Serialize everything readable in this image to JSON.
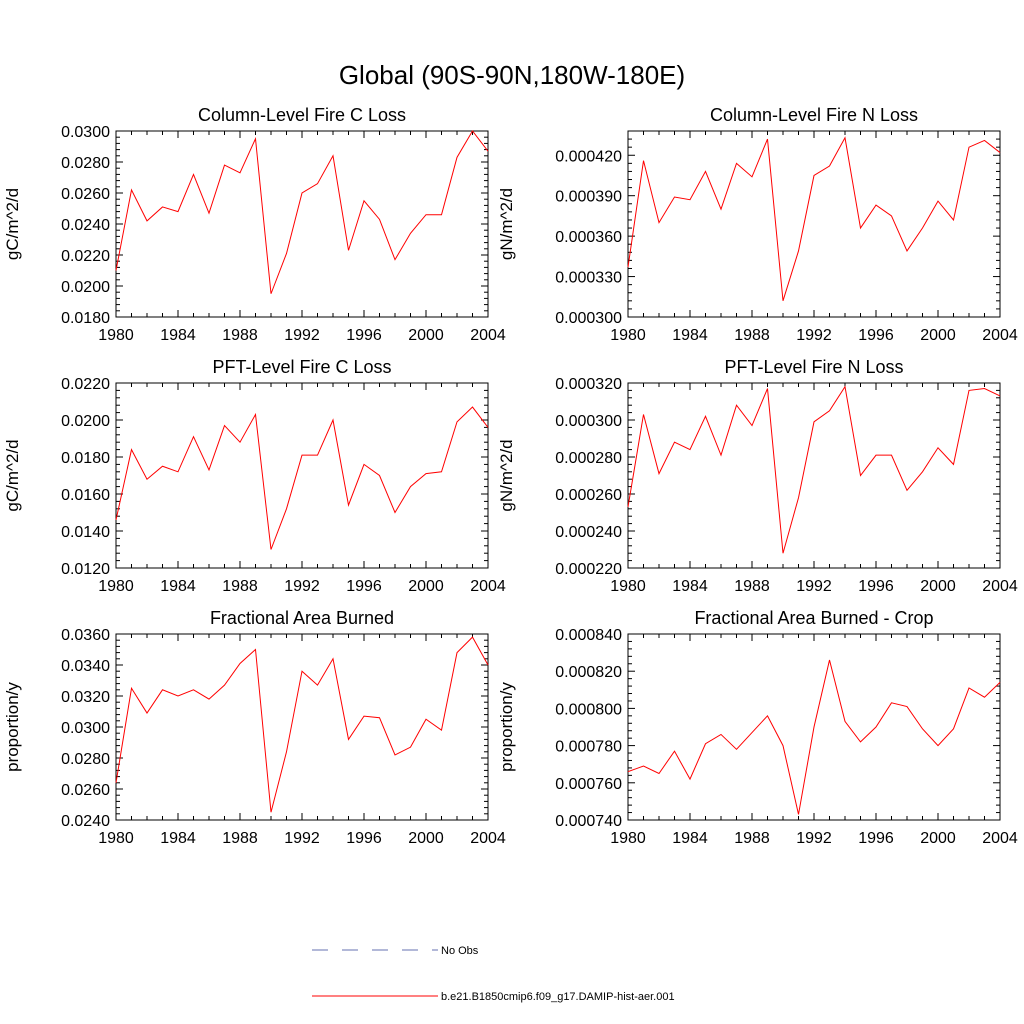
{
  "figure": {
    "title": "Global (90S-90N,180W-180E)"
  },
  "legend": {
    "items": [
      {
        "label": "No Obs",
        "style": "dashed",
        "color": "#6670b0"
      },
      {
        "label": "b.e21.B1850cmip6.f09_g17.DAMIP-hist-aer.001",
        "style": "solid",
        "color": "#ff0000"
      }
    ]
  },
  "chart_data": [
    {
      "type": "line",
      "title": "Column-Level Fire C Loss",
      "xlabel": "",
      "ylabel": "gC/m^2/d",
      "xlim": [
        1980,
        2004
      ],
      "ylim": [
        0.018,
        0.03
      ],
      "xticks": [
        "1980",
        "1984",
        "1988",
        "1992",
        "1996",
        "2000",
        "2004"
      ],
      "yticks": [
        "0.0180",
        "0.0200",
        "0.0220",
        "0.0240",
        "0.0260",
        "0.0280",
        "0.0300"
      ],
      "x": [
        1980,
        1981,
        1982,
        1983,
        1984,
        1985,
        1986,
        1987,
        1988,
        1989,
        1990,
        1991,
        1992,
        1993,
        1994,
        1995,
        1996,
        1997,
        1998,
        1999,
        2000,
        2001,
        2002,
        2003,
        2004
      ],
      "series": [
        {
          "values": [
            0.021,
            0.0262,
            0.0242,
            0.0251,
            0.0248,
            0.0272,
            0.0247,
            0.0278,
            0.0273,
            0.0295,
            0.0195,
            0.0221,
            0.026,
            0.0266,
            0.0284,
            0.0223,
            0.0255,
            0.0243,
            0.0217,
            0.0234,
            0.0246,
            0.0246,
            0.0283,
            0.03,
            0.0287
          ],
          "color": "#ff0000"
        }
      ]
    },
    {
      "type": "line",
      "title": "Column-Level Fire N Loss",
      "xlabel": "",
      "ylabel": "gN/m^2/d",
      "xlim": [
        1980,
        2004
      ],
      "ylim": [
        0.0003,
        0.000438
      ],
      "xticks": [
        "1980",
        "1984",
        "1988",
        "1992",
        "1996",
        "2000",
        "2004"
      ],
      "yticks": [
        "0.000300",
        "0.000330",
        "0.000360",
        "0.000390",
        "0.000420"
      ],
      "x": [
        1980,
        1981,
        1982,
        1983,
        1984,
        1985,
        1986,
        1987,
        1988,
        1989,
        1990,
        1991,
        1992,
        1993,
        1994,
        1995,
        1996,
        1997,
        1998,
        1999,
        2000,
        2001,
        2002,
        2003,
        2004
      ],
      "series": [
        {
          "values": [
            0.000337,
            0.000416,
            0.00037,
            0.000389,
            0.000387,
            0.000408,
            0.00038,
            0.000414,
            0.000404,
            0.000432,
            0.000312,
            0.000349,
            0.000405,
            0.000412,
            0.000433,
            0.000366,
            0.000383,
            0.000375,
            0.000349,
            0.000366,
            0.000386,
            0.000372,
            0.000426,
            0.000431,
            0.000422
          ],
          "color": "#ff0000"
        }
      ]
    },
    {
      "type": "line",
      "title": "PFT-Level Fire C Loss",
      "xlabel": "",
      "ylabel": "gC/m^2/d",
      "xlim": [
        1980,
        2004
      ],
      "ylim": [
        0.012,
        0.022
      ],
      "xticks": [
        "1980",
        "1984",
        "1988",
        "1992",
        "1996",
        "2000",
        "2004"
      ],
      "yticks": [
        "0.0120",
        "0.0140",
        "0.0160",
        "0.0180",
        "0.0200",
        "0.0220"
      ],
      "x": [
        1980,
        1981,
        1982,
        1983,
        1984,
        1985,
        1986,
        1987,
        1988,
        1989,
        1990,
        1991,
        1992,
        1993,
        1994,
        1995,
        1996,
        1997,
        1998,
        1999,
        2000,
        2001,
        2002,
        2003,
        2004
      ],
      "series": [
        {
          "values": [
            0.0146,
            0.0184,
            0.0168,
            0.0175,
            0.0172,
            0.0191,
            0.0173,
            0.0197,
            0.0188,
            0.0203,
            0.013,
            0.0152,
            0.0181,
            0.0181,
            0.02,
            0.0154,
            0.0176,
            0.017,
            0.015,
            0.0164,
            0.0171,
            0.0172,
            0.0199,
            0.0207,
            0.0196
          ],
          "color": "#ff0000"
        }
      ]
    },
    {
      "type": "line",
      "title": "PFT-Level Fire N Loss",
      "xlabel": "",
      "ylabel": "gN/m^2/d",
      "xlim": [
        1980,
        2004
      ],
      "ylim": [
        0.00022,
        0.00032
      ],
      "xticks": [
        "1980",
        "1984",
        "1988",
        "1992",
        "1996",
        "2000",
        "2004"
      ],
      "yticks": [
        "0.000220",
        "0.000240",
        "0.000260",
        "0.000280",
        "0.000300",
        "0.000320"
      ],
      "x": [
        1980,
        1981,
        1982,
        1983,
        1984,
        1985,
        1986,
        1987,
        1988,
        1989,
        1990,
        1991,
        1992,
        1993,
        1994,
        1995,
        1996,
        1997,
        1998,
        1999,
        2000,
        2001,
        2002,
        2003,
        2004
      ],
      "series": [
        {
          "values": [
            0.000253,
            0.000303,
            0.000271,
            0.000288,
            0.000284,
            0.000302,
            0.000281,
            0.000308,
            0.000297,
            0.000317,
            0.000228,
            0.000258,
            0.000299,
            0.000305,
            0.000318,
            0.00027,
            0.000281,
            0.000281,
            0.000262,
            0.000272,
            0.000285,
            0.000276,
            0.000316,
            0.000317,
            0.000313
          ],
          "color": "#ff0000"
        }
      ]
    },
    {
      "type": "line",
      "title": "Fractional Area Burned",
      "xlabel": "",
      "ylabel": "proportion/y",
      "xlim": [
        1980,
        2004
      ],
      "ylim": [
        0.024,
        0.036
      ],
      "xticks": [
        "1980",
        "1984",
        "1988",
        "1992",
        "1996",
        "2000",
        "2004"
      ],
      "yticks": [
        "0.0240",
        "0.0260",
        "0.0280",
        "0.0300",
        "0.0320",
        "0.0340",
        "0.0360"
      ],
      "x": [
        1980,
        1981,
        1982,
        1983,
        1984,
        1985,
        1986,
        1987,
        1988,
        1989,
        1990,
        1991,
        1992,
        1993,
        1994,
        1995,
        1996,
        1997,
        1998,
        1999,
        2000,
        2001,
        2002,
        2003,
        2004
      ],
      "series": [
        {
          "values": [
            0.0264,
            0.0325,
            0.0309,
            0.0324,
            0.032,
            0.0324,
            0.0318,
            0.0327,
            0.0341,
            0.035,
            0.0245,
            0.0284,
            0.0336,
            0.0327,
            0.0344,
            0.0292,
            0.0307,
            0.0306,
            0.0282,
            0.0287,
            0.0305,
            0.0298,
            0.0348,
            0.0358,
            0.034
          ],
          "color": "#ff0000"
        }
      ]
    },
    {
      "type": "line",
      "title": "Fractional Area Burned - Crop",
      "xlabel": "",
      "ylabel": "proportion/y",
      "xlim": [
        1980,
        2004
      ],
      "ylim": [
        0.00074,
        0.00084
      ],
      "xticks": [
        "1980",
        "1984",
        "1988",
        "1992",
        "1996",
        "2000",
        "2004"
      ],
      "yticks": [
        "0.000740",
        "0.000760",
        "0.000780",
        "0.000800",
        "0.000820",
        "0.000840"
      ],
      "x": [
        1980,
        1981,
        1982,
        1983,
        1984,
        1985,
        1986,
        1987,
        1988,
        1989,
        1990,
        1991,
        1992,
        1993,
        1994,
        1995,
        1996,
        1997,
        1998,
        1999,
        2000,
        2001,
        2002,
        2003,
        2004
      ],
      "series": [
        {
          "values": [
            0.000766,
            0.000769,
            0.000765,
            0.000777,
            0.000762,
            0.000781,
            0.000786,
            0.000778,
            0.000787,
            0.000796,
            0.00078,
            0.000743,
            0.00079,
            0.000826,
            0.000793,
            0.000782,
            0.00079,
            0.000803,
            0.000801,
            0.000789,
            0.00078,
            0.000789,
            0.000811,
            0.000806,
            0.000814
          ],
          "color": "#ff0000"
        }
      ]
    }
  ]
}
